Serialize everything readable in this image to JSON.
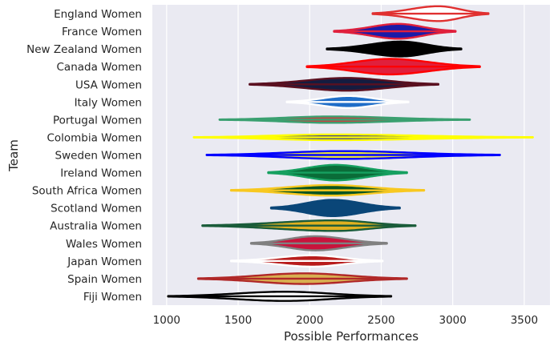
{
  "chart_data": {
    "type": "violin",
    "xlabel": "Possible Performances",
    "ylabel": "Team",
    "xlim": [
      900,
      3680
    ],
    "xticks": [
      1000,
      1500,
      2000,
      2500,
      3000,
      3500
    ],
    "xtick_labels": [
      "1000",
      "1500",
      "2000",
      "2500",
      "3000",
      "3500"
    ],
    "grid": true,
    "background": "#eaeaf2",
    "teams": [
      {
        "name": "England Women",
        "min": 2440,
        "max": 3250,
        "median": 2900,
        "peak_halfwidth": 0.42,
        "fill": "#ffffff",
        "edge": "#e03030"
      },
      {
        "name": "France Women",
        "min": 2170,
        "max": 3020,
        "median": 2620,
        "peak_halfwidth": 0.42,
        "fill": "#1a1aa8",
        "edge": "#e0203c"
      },
      {
        "name": "New Zealand Women",
        "min": 2120,
        "max": 3060,
        "median": 2640,
        "peak_halfwidth": 0.42,
        "fill": "#000000",
        "edge": "#000000"
      },
      {
        "name": "Canada Women",
        "min": 1980,
        "max": 3190,
        "median": 2560,
        "peak_halfwidth": 0.44,
        "fill": "#e0203c",
        "edge": "#ff0000"
      },
      {
        "name": "USA Women",
        "min": 1580,
        "max": 2900,
        "median": 2260,
        "peak_halfwidth": 0.36,
        "fill": "#141c40",
        "edge": "#5a1020"
      },
      {
        "name": "Italy Women",
        "min": 1840,
        "max": 2690,
        "median": 2270,
        "peak_halfwidth": 0.34,
        "fill": "#1f6dc8",
        "edge": "#ffffff"
      },
      {
        "name": "Portugal Women",
        "min": 1370,
        "max": 3120,
        "median": 2150,
        "peak_halfwidth": 0.18,
        "fill": "#c84040",
        "edge": "#3aa070"
      },
      {
        "name": "Colombia Women",
        "min": 1190,
        "max": 3560,
        "median": 2160,
        "peak_halfwidth": 0.16,
        "fill": "#2020a0",
        "edge": "#ffff00"
      },
      {
        "name": "Sweden Women",
        "min": 1280,
        "max": 3330,
        "median": 2230,
        "peak_halfwidth": 0.22,
        "fill": "#e8e23a",
        "edge": "#0000ff"
      },
      {
        "name": "Ireland Women",
        "min": 1710,
        "max": 2680,
        "median": 2180,
        "peak_halfwidth": 0.44,
        "fill": "#0a6c38",
        "edge": "#16a060"
      },
      {
        "name": "South Africa Women",
        "min": 1450,
        "max": 2800,
        "median": 2150,
        "peak_halfwidth": 0.3,
        "fill": "#0a5520",
        "edge": "#f8c820"
      },
      {
        "name": "Scotland Women",
        "min": 1730,
        "max": 2630,
        "median": 2160,
        "peak_halfwidth": 0.46,
        "fill": "#0a4678",
        "edge": "#0a4678"
      },
      {
        "name": "Australia Women",
        "min": 1250,
        "max": 2740,
        "median": 2180,
        "peak_halfwidth": 0.3,
        "fill": "#e0b020",
        "edge": "#1a5c3a"
      },
      {
        "name": "Wales Women",
        "min": 1590,
        "max": 2540,
        "median": 2040,
        "peak_halfwidth": 0.4,
        "fill": "#c8143c",
        "edge": "#808080"
      },
      {
        "name": "Japan Women",
        "min": 1450,
        "max": 2510,
        "median": 2020,
        "peak_halfwidth": 0.32,
        "fill": "#b81c1c",
        "edge": "#ffffff"
      },
      {
        "name": "Spain Women",
        "min": 1220,
        "max": 2680,
        "median": 1960,
        "peak_halfwidth": 0.3,
        "fill": "#d8b050",
        "edge": "#b02828"
      },
      {
        "name": "Fiji Women",
        "min": 1010,
        "max": 2570,
        "median": 1830,
        "peak_halfwidth": 0.26,
        "fill": "#ffffff",
        "edge": "#000000"
      }
    ]
  }
}
